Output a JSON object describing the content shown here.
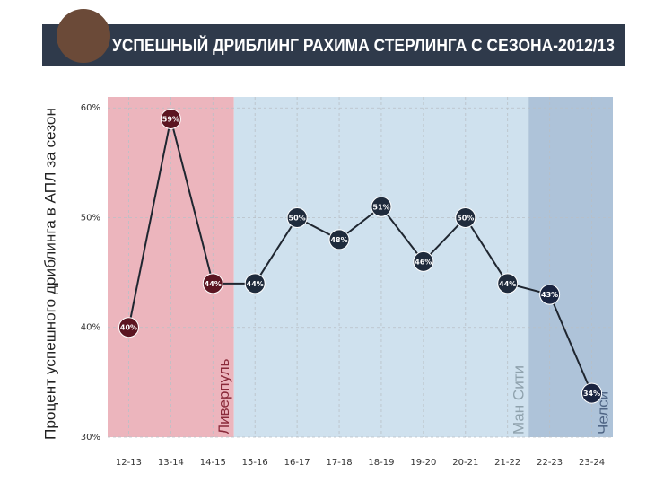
{
  "chart_data": {
    "type": "line",
    "title": "УСПЕШНЫЙ ДРИБЛИНГ РАХИМА СТЕРЛИНГА С СЕЗОНА-2012/13",
    "y_label": "Процент успешного дриблинга в АПЛ за сезон",
    "categories": [
      "12-13",
      "13-14",
      "14-15",
      "15-16",
      "16-17",
      "17-18",
      "18-19",
      "19-20",
      "20-21",
      "21-22",
      "22-23",
      "23-24"
    ],
    "series": [
      {
        "color": "#1f2630",
        "values": [
          40,
          59,
          44,
          44,
          50,
          48,
          51,
          46,
          50,
          44,
          43,
          34
        ],
        "value_labels": [
          "40%",
          "59%",
          "44%",
          "44%",
          "50%",
          "48%",
          "51%",
          "46%",
          "50%",
          "44%",
          "43%",
          "34%"
        ]
      }
    ],
    "regions": [
      {
        "name": "Ливерпуль",
        "from": "12-13",
        "to": "14-15",
        "color": "#ecb5bd",
        "marker_color": "#5b1521",
        "label_color": "#8a2a3a"
      },
      {
        "name": "Ман Сити",
        "from": "15-16",
        "to": "21-22",
        "color": "#cfe1ee",
        "marker_color": "#1f2b3c",
        "label_color": "#8fa2ad"
      },
      {
        "name": "Челси",
        "from": "22-23",
        "to": "23-24",
        "color": "#aec3d9",
        "marker_color": "#1a2440",
        "label_color": "#4f6585"
      }
    ],
    "ylim": [
      30,
      61
    ],
    "yticks": [
      {
        "value": 30,
        "label": "30%"
      },
      {
        "value": 40,
        "label": "40%"
      },
      {
        "value": 50,
        "label": "50%"
      },
      {
        "value": 60,
        "label": "60%"
      }
    ],
    "grid": true
  }
}
